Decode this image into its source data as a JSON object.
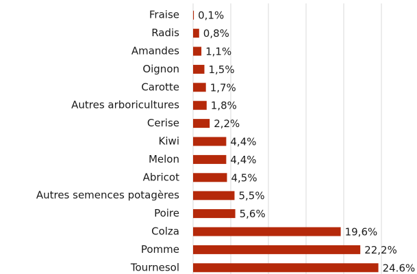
{
  "chart_data": {
    "type": "bar",
    "orientation": "horizontal",
    "categories": [
      "Fraise",
      "Radis",
      "Amandes",
      "Oignon",
      "Carotte",
      "Autres arboricultures",
      "Cerise",
      "Kiwi",
      "Melon",
      "Abricot",
      "Autres semences potagères",
      "Poire",
      "Colza",
      "Pomme",
      "Tournesol"
    ],
    "values": [
      0.1,
      0.8,
      1.1,
      1.5,
      1.7,
      1.8,
      2.2,
      4.4,
      4.4,
      4.5,
      5.5,
      5.6,
      19.6,
      22.2,
      24.6
    ],
    "value_labels": [
      "0,1%",
      "0,8%",
      "1,1%",
      "1,5%",
      "1,7%",
      "1,8%",
      "2,2%",
      "4,4%",
      "4,4%",
      "4,5%",
      "5,5%",
      "5,6%",
      "19,6%",
      "22,2%",
      "24.6%"
    ],
    "color": "#b5290a",
    "xlim": [
      0,
      25
    ],
    "xticks": [
      0,
      5,
      10,
      15,
      20,
      25
    ],
    "grid": true
  }
}
